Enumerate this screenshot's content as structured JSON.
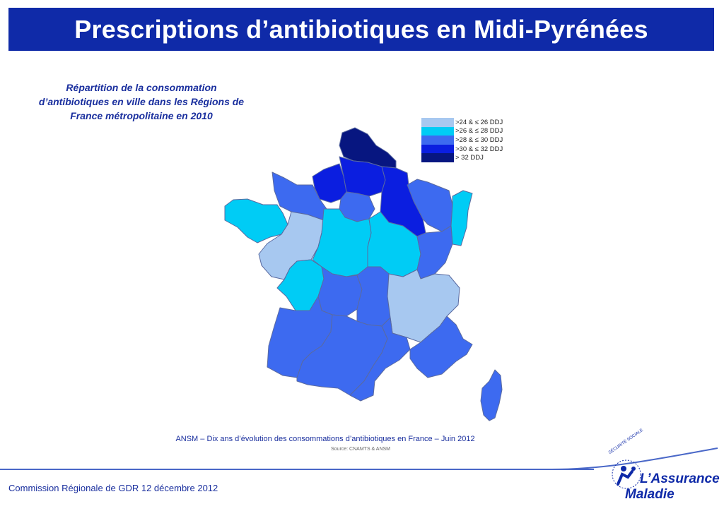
{
  "slide": {
    "title": "Prescriptions d’antibiotiques en Midi-Pyrénées",
    "subtitle_lines": [
      "Répartition de la consommation",
      "d’antibiotiques en ville dans les Régions de",
      "France métropolitaine en 2010"
    ],
    "credit": "ANSM – Dix ans d’évolution des consommations d’antibiotiques en France – Juin 2012",
    "source": "Source: CNAMTS & ANSM",
    "footer": "Commission Régionale de GDR 12 décembre 2012",
    "logo": {
      "arc_text": "SÉCURITÉ SOCIALE",
      "line1": "L’Assurance",
      "line2": "Maladie"
    }
  },
  "legend": [
    {
      "label": ">24 & ≤ 26 DDJ",
      "color": "#a7c8f0"
    },
    {
      "label": ">26 & ≤ 28 DDJ",
      "color": "#00ccf5"
    },
    {
      "label": ">28 & ≤ 30 DDJ",
      "color": "#3d6af0"
    },
    {
      "label": ">30 & ≤ 32 DDJ",
      "color": "#0b1ee0"
    },
    {
      "label": "> 32 DDJ",
      "color": "#071680"
    }
  ],
  "colors": {
    "title_bar": "#0f2aa8",
    "text_blue": "#1a2f9e",
    "region_border": "#5a6aa0"
  }
}
